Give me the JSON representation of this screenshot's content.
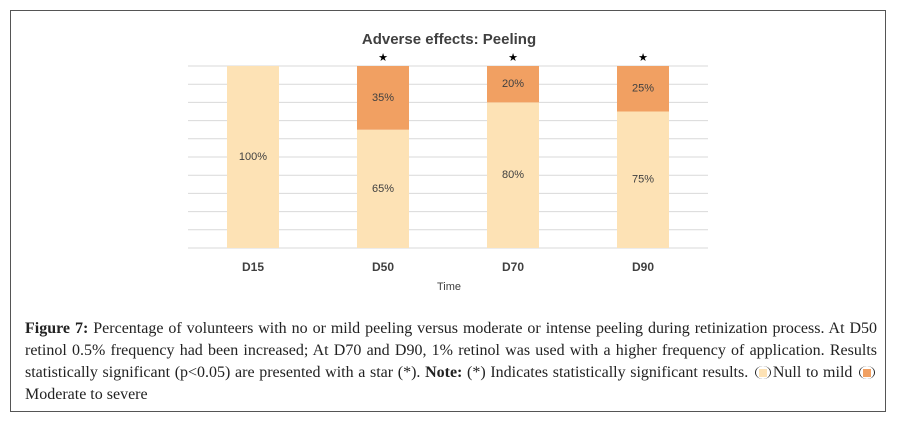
{
  "chart_data": {
    "type": "stacked_bar",
    "title": "Adverse effects: Peeling",
    "x_label": "Time",
    "categories": [
      "D15",
      "D50",
      "D70",
      "D90"
    ],
    "series": [
      {
        "name": "Null to mild",
        "color": "#fde2b5",
        "values": [
          100,
          65,
          80,
          75
        ],
        "value_labels": [
          "100%",
          "65%",
          "80%",
          "75%"
        ]
      },
      {
        "name": "Moderate to severe",
        "color": "#f1a062",
        "values": [
          0,
          35,
          20,
          25
        ],
        "value_labels": [
          null,
          "35%",
          "20%",
          "25%"
        ]
      }
    ],
    "annotations": [
      null,
      "★",
      "★",
      "★"
    ],
    "ylim": [
      0,
      100
    ],
    "yticks": [
      0,
      10,
      20,
      30,
      40,
      50,
      60,
      70,
      80,
      90,
      100
    ],
    "ytick_labels": false,
    "grid": true
  },
  "caption": {
    "label": "Figure 7:",
    "text": "Percentage of volunteers with no or mild peeling versus moderate or intense peeling during retinization process. At D50 retinol 0.5% frequency had been increased; At D70 and D90, 1% retinol was used with a higher frequency of application. Results statistically significant (p<0.05) are presented with a star (*).",
    "note_label": "Note:",
    "note_text": "(*) Indicates statistically significant results."
  }
}
